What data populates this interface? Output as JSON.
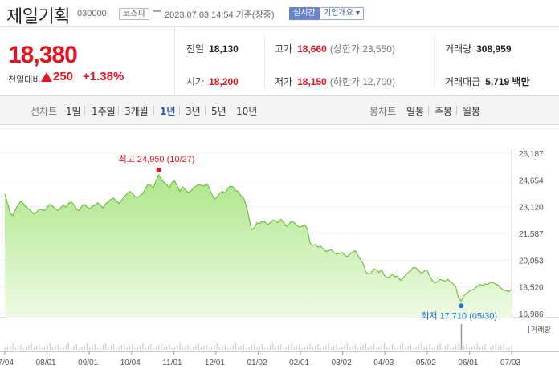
{
  "header": {
    "stock_name": "제일기획",
    "stock_code": "030000",
    "market": "코스피",
    "date": "2023.07.03 14:54 기준(장중)",
    "realtime": "실시간",
    "overview": "기업개요 ▾"
  },
  "quote": {
    "price": "18,380",
    "change_label": "전일대비",
    "change_value": "250",
    "change_percent": "+1.38%",
    "stats": [
      {
        "label": "전일",
        "value": "18,130",
        "color": "#222222"
      },
      {
        "label": "고가",
        "value": "18,660",
        "extra": "(상한가 23,550)",
        "color": "#e3141f"
      },
      {
        "label": "거래량",
        "value": "308,959",
        "color": "#222222"
      },
      {
        "label": "시가",
        "value": "18,200",
        "color": "#e3141f"
      },
      {
        "label": "저가",
        "value": "18,150",
        "extra": "(하한가 12,700)",
        "color": "#e3141f"
      },
      {
        "label": "거래대금",
        "value": "5,719 백만",
        "color": "#222222"
      }
    ]
  },
  "tabs": {
    "line_label": "선차트",
    "periods": [
      "1일",
      "1주일",
      "3개월",
      "1년",
      "3년",
      "5년",
      "10년"
    ],
    "active": "1년",
    "candle_label": "봉차트",
    "candles": [
      "일봉",
      "주봉",
      "월봉"
    ]
  },
  "chart_data": {
    "type": "area",
    "y_ticks": [
      "26,187",
      "24,654",
      "23,120",
      "21,587",
      "20,053",
      "18,520",
      "16,986"
    ],
    "ylim": [
      16986,
      26187
    ],
    "x_labels": [
      "07/04",
      "08/01",
      "09/01",
      "10/04",
      "11/01",
      "12/01",
      "01/02",
      "02/01",
      "03/02",
      "04/03",
      "05/02",
      "06/01",
      "07/03"
    ],
    "high_annotation": "최고 24,950 (10/27)",
    "low_annotation": "최저 17,710 (05/30)",
    "volume_legend": "거래량",
    "fill_color": "#aee58a",
    "line_color": "#5db62c",
    "series": [
      {
        "values": [
          23850,
          23350,
          22780,
          22600,
          22950,
          23200,
          23450,
          23300,
          23100,
          23000,
          22850,
          22700,
          22800,
          23000,
          22950,
          22900,
          23100,
          23250,
          23150,
          23000,
          22900,
          23050,
          23200,
          23100,
          23300,
          23400,
          23250,
          23000,
          22900,
          23150,
          23250,
          23100,
          23000,
          23150,
          23200,
          23350,
          23200,
          23050,
          23300,
          23400,
          23550,
          23600,
          23450,
          23300,
          23500,
          23700,
          23850,
          24000,
          23900,
          23700,
          23650,
          23750,
          23900,
          24150,
          24400,
          24350,
          24200,
          24600,
          24950,
          24700,
          24500,
          24400,
          24200,
          24500,
          24600,
          24300,
          24000,
          24250,
          24100,
          23950,
          24000,
          24200,
          24300,
          24400,
          24350,
          24300,
          24450,
          24200,
          23850,
          23550,
          23700,
          23900,
          24000,
          23900,
          24150,
          24300,
          24250,
          24050,
          24000,
          23750,
          23600,
          23200,
          22500,
          21800,
          21900,
          22200,
          22150,
          22300,
          22250,
          22100,
          22200,
          22350,
          22300,
          22200,
          22400,
          22250,
          22000,
          22100,
          22300,
          22200,
          22050,
          21950,
          22000,
          22100,
          21850,
          21050,
          20900,
          20950,
          20800,
          20850,
          20700,
          20550,
          20600,
          20650,
          20500,
          20400,
          20450,
          20500,
          20350,
          20250,
          20400,
          20500,
          20600,
          20350,
          20100,
          19850,
          19400,
          19250,
          19300,
          19550,
          19500,
          19350,
          19500,
          19200,
          19050,
          19100,
          19250,
          19100,
          19150,
          18900,
          19000,
          19200,
          19350,
          19450,
          19650,
          19600,
          19450,
          19300,
          19400,
          19500,
          19200,
          18900,
          18750,
          18800,
          18950,
          18900,
          18850,
          18950,
          18800,
          18700,
          18500,
          17900,
          17710,
          18000,
          18150,
          18250,
          18350,
          18400,
          18550,
          18650,
          18600,
          18700,
          18650,
          18800,
          18750,
          18700,
          18600,
          18450,
          18350,
          18300,
          18250,
          18380
        ]
      }
    ]
  }
}
